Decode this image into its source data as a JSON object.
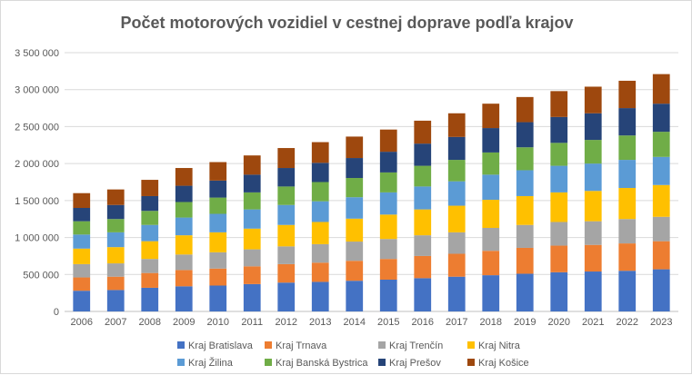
{
  "chart_data": {
    "type": "bar",
    "stacked": true,
    "title": "Počet motorových vozidiel v cestnej doprave podľa krajov",
    "xlabel": "",
    "ylabel": "",
    "ylim": [
      0,
      3500000
    ],
    "yticks": [
      0,
      500000,
      1000000,
      1500000,
      2000000,
      2500000,
      3000000,
      3500000
    ],
    "ytick_labels": [
      "0",
      "500 000",
      "1 000 000",
      "1 500 000",
      "2 000 000",
      "2 500 000",
      "3 000 000",
      "3 500 000"
    ],
    "grid": true,
    "legend_position": "bottom",
    "categories": [
      "2006",
      "2007",
      "2008",
      "2009",
      "2010",
      "2011",
      "2012",
      "2013",
      "2014",
      "2015",
      "2016",
      "2017",
      "2018",
      "2019",
      "2020",
      "2021",
      "2022",
      "2023"
    ],
    "series": [
      {
        "name": "Kraj Bratislava",
        "color": "#4472C4",
        "values": [
          280000,
          290000,
          320000,
          340000,
          350000,
          370000,
          390000,
          400000,
          415000,
          430000,
          450000,
          470000,
          490000,
          510000,
          530000,
          540000,
          550000,
          570000
        ]
      },
      {
        "name": "Kraj Trnava",
        "color": "#ED7D31",
        "values": [
          180000,
          180000,
          200000,
          220000,
          230000,
          240000,
          250000,
          260000,
          270000,
          280000,
          300000,
          310000,
          330000,
          350000,
          360000,
          360000,
          370000,
          380000
        ]
      },
      {
        "name": "Kraj Trenčín",
        "color": "#A5A5A5",
        "values": [
          180000,
          180000,
          190000,
          210000,
          220000,
          230000,
          240000,
          250000,
          260000,
          270000,
          280000,
          290000,
          310000,
          310000,
          320000,
          320000,
          330000,
          330000
        ]
      },
      {
        "name": "Kraj Nitra",
        "color": "#FFC000",
        "values": [
          210000,
          220000,
          240000,
          260000,
          270000,
          280000,
          290000,
          300000,
          310000,
          330000,
          350000,
          360000,
          380000,
          390000,
          400000,
          410000,
          420000,
          430000
        ]
      },
      {
        "name": "Kraj Žilina",
        "color": "#5B9BD5",
        "values": [
          190000,
          200000,
          220000,
          240000,
          250000,
          260000,
          270000,
          280000,
          290000,
          300000,
          310000,
          330000,
          340000,
          350000,
          360000,
          370000,
          380000,
          380000
        ]
      },
      {
        "name": "Kraj Banská Bystrica",
        "color": "#70AD47",
        "values": [
          180000,
          180000,
          190000,
          210000,
          220000,
          230000,
          250000,
          260000,
          260000,
          270000,
          280000,
          290000,
          300000,
          310000,
          310000,
          320000,
          330000,
          340000
        ]
      },
      {
        "name": "Kraj Prešov",
        "color": "#264478",
        "values": [
          180000,
          190000,
          200000,
          220000,
          230000,
          240000,
          250000,
          260000,
          270000,
          280000,
          300000,
          310000,
          330000,
          340000,
          350000,
          360000,
          370000,
          380000
        ]
      },
      {
        "name": "Kraj Košice",
        "color": "#9E480E",
        "values": [
          200000,
          210000,
          220000,
          240000,
          250000,
          260000,
          270000,
          280000,
          290000,
          300000,
          310000,
          320000,
          330000,
          340000,
          350000,
          360000,
          370000,
          400000
        ]
      }
    ]
  }
}
